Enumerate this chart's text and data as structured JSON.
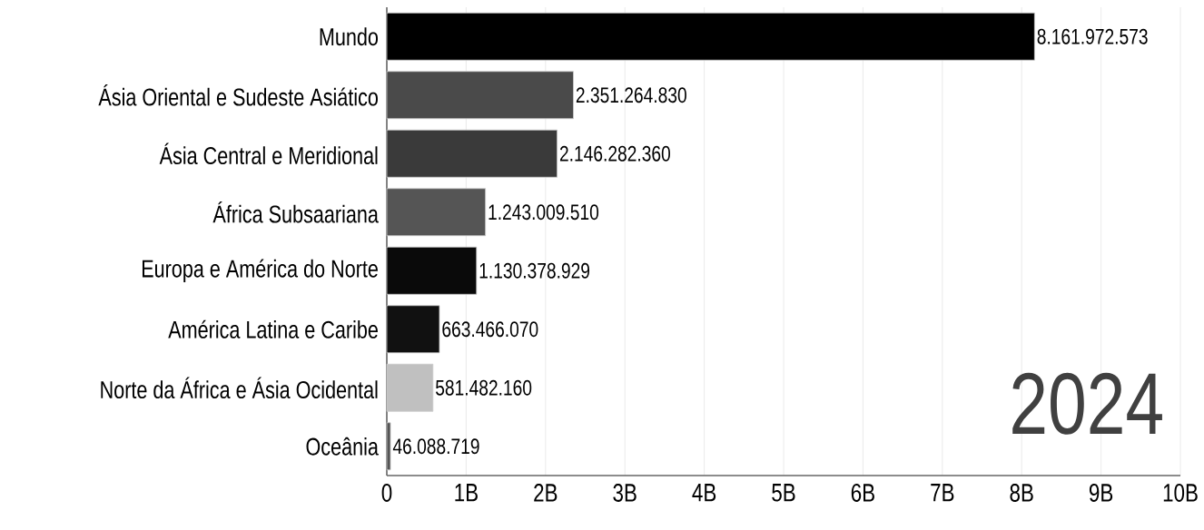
{
  "chart_data": {
    "type": "bar",
    "orientation": "horizontal",
    "categories": [
      "Mundo",
      "Ásia Oriental e Sudeste Asiático",
      "Ásia Central e Meridional",
      "África Subsaariana",
      "Europa e América do Norte",
      "América Latina e Caribe",
      "Norte da África e Ásia Ocidental",
      "Oceânia"
    ],
    "values": [
      8161972573,
      2351264830,
      2146282360,
      1243009510,
      1130378929,
      663466070,
      581482160,
      46088719
    ],
    "value_labels": [
      "8.161.972.573",
      "2.351.264.830",
      "2.146.282.360",
      "1.243.009.510",
      "1.130.378.929",
      "663.466.070",
      "581.482.160",
      "46.088.719"
    ],
    "colors": [
      "#000000",
      "#4a4a4a",
      "#3a3a3a",
      "#555555",
      "#0a0a0a",
      "#111111",
      "#c0c0c0",
      "#555555"
    ],
    "xlim": [
      0,
      10000000000
    ],
    "xticks": [
      0,
      {
        "value": 1000000000,
        "label": "1B"
      },
      {
        "value": 2000000000,
        "label": "2B"
      },
      {
        "value": 3000000000,
        "label": "3B"
      },
      {
        "value": 4000000000,
        "label": "4B"
      },
      {
        "value": 5000000000,
        "label": "5B"
      },
      {
        "value": 6000000000,
        "label": "6B"
      },
      {
        "value": 7000000000,
        "label": "7B"
      },
      {
        "value": 8000000000,
        "label": "8B"
      },
      {
        "value": 9000000000,
        "label": "9B"
      },
      {
        "value": 10000000000,
        "label": "10B"
      }
    ],
    "grid": "x",
    "annotations": [
      "2024"
    ]
  }
}
